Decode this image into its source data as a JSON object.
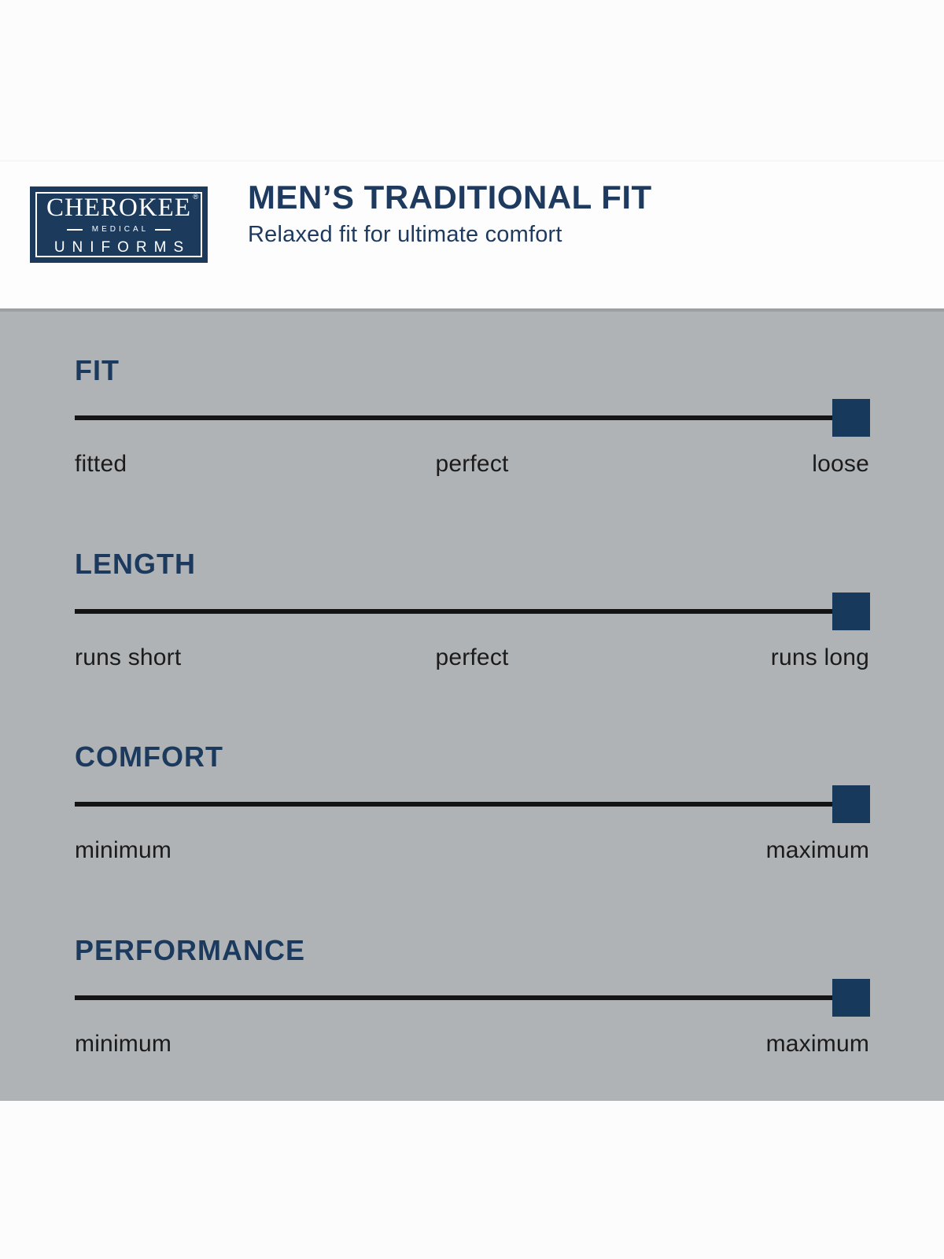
{
  "logo": {
    "brand": "CHEROKEE",
    "registered_mark": "®",
    "medical": "MEDICAL",
    "uniforms": "UNIFORMS"
  },
  "header": {
    "title": "MEN’S TRADITIONAL FIT",
    "subtitle": "Relaxed fit for ultimate comfort"
  },
  "sections": [
    {
      "id": "fit",
      "heading": "FIT",
      "left_label": "fitted",
      "center_label": "perfect",
      "right_label": "loose",
      "value_percent": 97.7,
      "value_meaning": "loose"
    },
    {
      "id": "length",
      "heading": "LENGTH",
      "left_label": "runs short",
      "center_label": "perfect",
      "right_label": "runs long",
      "value_percent": 97.7,
      "value_meaning": "runs long"
    },
    {
      "id": "comfort",
      "heading": "COMFORT",
      "left_label": "minimum",
      "center_label": "",
      "right_label": "maximum",
      "value_percent": 97.7,
      "value_meaning": "maximum"
    },
    {
      "id": "performance",
      "heading": "PERFORMANCE",
      "left_label": "minimum",
      "center_label": "",
      "right_label": "maximum",
      "value_percent": 97.7,
      "value_meaning": "maximum"
    }
  ],
  "colors": {
    "navy_accent": "#1c3a5e",
    "logo_background": "#1c3a5c",
    "marker_navy": "#17395c",
    "panel_gray": "#b0b3b6",
    "panel_top_strip": "#9da0a3",
    "track_black": "#141414",
    "label_text": "#1b1b1b",
    "page_white": "#fdfdfd"
  },
  "chart_data": [
    {
      "type": "scatter",
      "title": "FIT",
      "xlim": [
        0,
        100
      ],
      "x": [
        97.7
      ],
      "tick_labels": [
        "fitted",
        "perfect",
        "loose"
      ],
      "marker": "navy-square",
      "reading": "loose"
    },
    {
      "type": "scatter",
      "title": "LENGTH",
      "xlim": [
        0,
        100
      ],
      "x": [
        97.7
      ],
      "tick_labels": [
        "runs short",
        "perfect",
        "runs long"
      ],
      "marker": "navy-square",
      "reading": "runs long"
    },
    {
      "type": "scatter",
      "title": "COMFORT",
      "xlim": [
        0,
        100
      ],
      "x": [
        97.7
      ],
      "tick_labels": [
        "minimum",
        "maximum"
      ],
      "marker": "navy-square",
      "reading": "maximum"
    },
    {
      "type": "scatter",
      "title": "PERFORMANCE",
      "xlim": [
        0,
        100
      ],
      "x": [
        97.7
      ],
      "tick_labels": [
        "minimum",
        "maximum"
      ],
      "marker": "navy-square",
      "reading": "maximum"
    }
  ]
}
